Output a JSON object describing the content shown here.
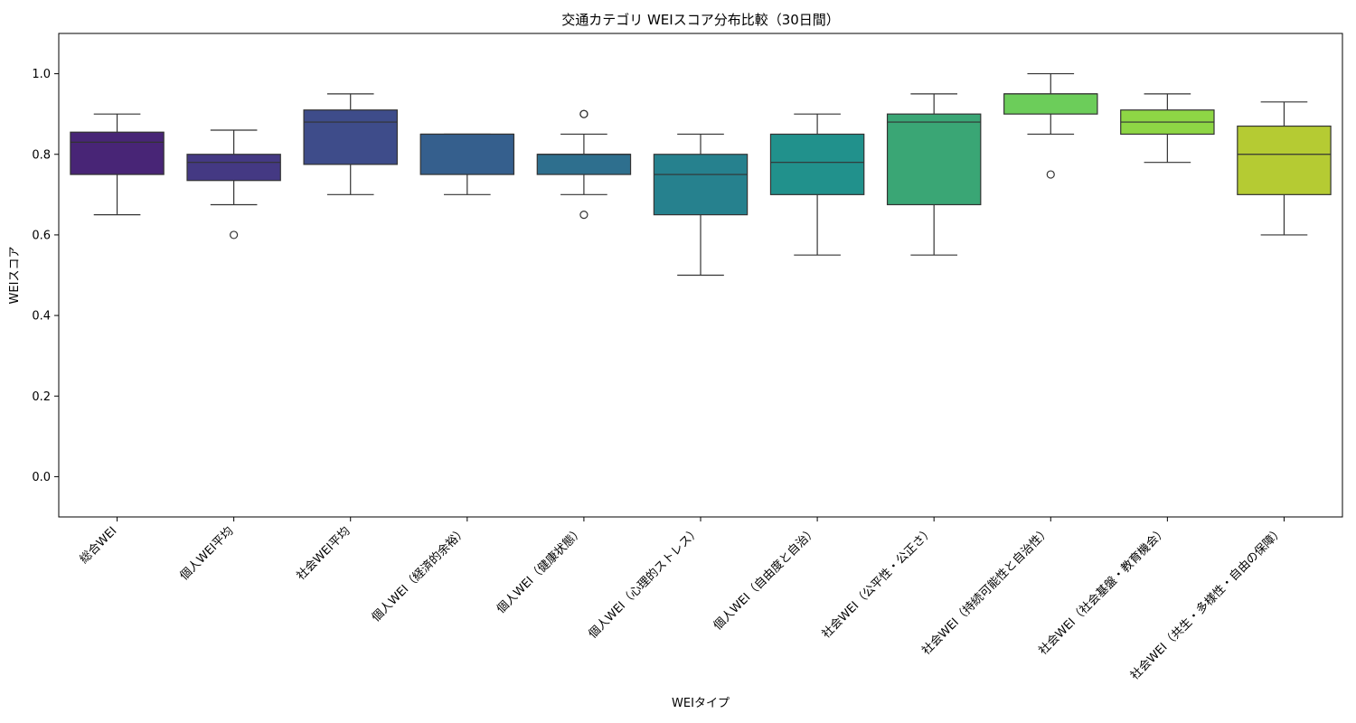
{
  "chart_data": {
    "type": "box",
    "title": "交通カテゴリ WEIスコア分布比較（30日間）",
    "xlabel": "WEIタイプ",
    "ylabel": "WEIスコア",
    "ylim": [
      -0.1,
      1.1
    ],
    "yticks": [
      "0.0",
      "0.2",
      "0.4",
      "0.6",
      "0.8",
      "1.0"
    ],
    "grid": false,
    "categories": [
      "総合WEI",
      "個人WEI平均",
      "社会WEI平均",
      "個人WEI（経済的余裕）",
      "個人WEI（健康状態）",
      "個人WEI（心理的ストレス）",
      "個人WEI（自由度と自治）",
      "社会WEI（公平性・公正さ）",
      "社会WEI（持続可能性と自治性）",
      "社会WEI（社会基盤・教育機会）",
      "社会WEI（共生・多様性・自由の保障）"
    ],
    "boxes": [
      {
        "whisker_low": 0.65,
        "q1": 0.75,
        "median": 0.83,
        "q3": 0.855,
        "whisker_high": 0.9,
        "outliers": [],
        "color": "#482576"
      },
      {
        "whisker_low": 0.675,
        "q1": 0.735,
        "median": 0.78,
        "q3": 0.8,
        "whisker_high": 0.86,
        "outliers": [
          0.6
        ],
        "color": "#443983"
      },
      {
        "whisker_low": 0.7,
        "q1": 0.775,
        "median": 0.88,
        "q3": 0.91,
        "whisker_high": 0.95,
        "outliers": [],
        "color": "#3e4c8a"
      },
      {
        "whisker_low": 0.7,
        "q1": 0.75,
        "median": 0.85,
        "q3": 0.85,
        "whisker_high": 0.85,
        "outliers": [],
        "color": "#355f8d"
      },
      {
        "whisker_low": 0.7,
        "q1": 0.75,
        "median": 0.8,
        "q3": 0.8,
        "whisker_high": 0.85,
        "outliers": [
          0.65,
          0.9,
          0.9
        ],
        "color": "#2e6f8e"
      },
      {
        "whisker_low": 0.5,
        "q1": 0.65,
        "median": 0.75,
        "q3": 0.8,
        "whisker_high": 0.85,
        "outliers": [],
        "color": "#26818e"
      },
      {
        "whisker_low": 0.55,
        "q1": 0.7,
        "median": 0.78,
        "q3": 0.85,
        "whisker_high": 0.9,
        "outliers": [],
        "color": "#21918c"
      },
      {
        "whisker_low": 0.55,
        "q1": 0.675,
        "median": 0.88,
        "q3": 0.9,
        "whisker_high": 0.95,
        "outliers": [],
        "color": "#3aa675"
      },
      {
        "whisker_low": 0.85,
        "q1": 0.9,
        "median": 0.95,
        "q3": 0.95,
        "whisker_high": 1.0,
        "outliers": [
          0.75
        ],
        "color": "#6ccd5a"
      },
      {
        "whisker_low": 0.78,
        "q1": 0.85,
        "median": 0.88,
        "q3": 0.91,
        "whisker_high": 0.95,
        "outliers": [],
        "color": "#8ed645"
      },
      {
        "whisker_low": 0.6,
        "q1": 0.7,
        "median": 0.8,
        "q3": 0.87,
        "whisker_high": 0.93,
        "outliers": [],
        "color": "#b5cb33"
      }
    ]
  }
}
